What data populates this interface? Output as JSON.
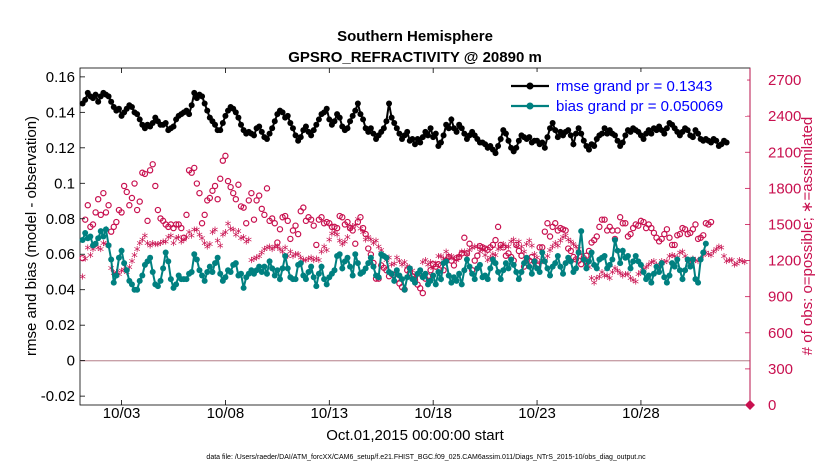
{
  "chart_data": {
    "type": "line",
    "title": "Southern Hemisphere",
    "subtitle": "GPSRO_REFRACTIVITY @ 20890 m",
    "xlabel": "Oct.01,2015 00:00:00 start",
    "ylabel": "rmse and bias (model - observation)",
    "y2label": "# of obs: o=possible; ∗=assimilated",
    "footnote": "data file: /Users/raeder/DAI/ATM_forcXX/CAM6_setup/f.e21.FHIST_BGC.f09_025.CAM6assim.011/Diags_NTrS_2015-10/obs_diag_output.nc",
    "x_unit": "days since Oct.01,2015 00:00",
    "xlim": [
      1.0,
      33.25
    ],
    "ylim": [
      -0.025,
      0.165
    ],
    "y2lim": [
      0,
      2800
    ],
    "xticks": [
      {
        "value": 3,
        "label": "10/03"
      },
      {
        "value": 8,
        "label": "10/08"
      },
      {
        "value": 13,
        "label": "10/13"
      },
      {
        "value": 18,
        "label": "10/18"
      },
      {
        "value": 23,
        "label": "10/23"
      },
      {
        "value": 28,
        "label": "10/28"
      }
    ],
    "yticks": [
      {
        "value": -0.02,
        "label": "-0.02"
      },
      {
        "value": 0,
        "label": "0"
      },
      {
        "value": 0.02,
        "label": "0.02"
      },
      {
        "value": 0.04,
        "label": "0.04"
      },
      {
        "value": 0.06,
        "label": "0.06"
      },
      {
        "value": 0.08,
        "label": "0.08"
      },
      {
        "value": 0.1,
        "label": "0.1"
      },
      {
        "value": 0.12,
        "label": "0.12"
      },
      {
        "value": 0.14,
        "label": "0.14"
      },
      {
        "value": 0.16,
        "label": "0.16"
      }
    ],
    "y2ticks": [
      {
        "value": 0,
        "label": "0"
      },
      {
        "value": 300,
        "label": "300"
      },
      {
        "value": 600,
        "label": "600"
      },
      {
        "value": 900,
        "label": "900"
      },
      {
        "value": 1200,
        "label": "1200"
      },
      {
        "value": 1500,
        "label": "1500"
      },
      {
        "value": 1800,
        "label": "1800"
      },
      {
        "value": 2100,
        "label": "2100"
      },
      {
        "value": 2400,
        "label": "2400"
      },
      {
        "value": 2700,
        "label": "2700"
      }
    ],
    "series": [
      {
        "name": "rmse grand pr = 0.1343",
        "axis": "left",
        "color": "#000000",
        "marker": "dot",
        "values": [
          0.145,
          0.147,
          0.151,
          0.149,
          0.148,
          0.15,
          0.146,
          0.149,
          0.151,
          0.15,
          0.149,
          0.146,
          0.143,
          0.141,
          0.142,
          0.138,
          0.14,
          0.142,
          0.144,
          0.143,
          0.14,
          0.139,
          0.136,
          0.133,
          0.131,
          0.133,
          0.132,
          0.134,
          0.137,
          0.135,
          0.133,
          0.133,
          0.134,
          0.13,
          0.131,
          0.132,
          0.136,
          0.138,
          0.139,
          0.14,
          0.141,
          0.139,
          0.144,
          0.151,
          0.148,
          0.15,
          0.149,
          0.145,
          0.141,
          0.137,
          0.135,
          0.133,
          0.13,
          0.13,
          0.134,
          0.138,
          0.141,
          0.143,
          0.142,
          0.14,
          0.137,
          0.133,
          0.13,
          0.128,
          0.129,
          0.128,
          0.127,
          0.131,
          0.132,
          0.129,
          0.126,
          0.125,
          0.128,
          0.131,
          0.135,
          0.139,
          0.141,
          0.14,
          0.137,
          0.138,
          0.134,
          0.131,
          0.127,
          0.124,
          0.126,
          0.13,
          0.132,
          0.129,
          0.127,
          0.13,
          0.133,
          0.136,
          0.139,
          0.14,
          0.142,
          0.136,
          0.133,
          0.135,
          0.139,
          0.137,
          0.132,
          0.13,
          0.131,
          0.135,
          0.138,
          0.141,
          0.145,
          0.139,
          0.136,
          0.131,
          0.129,
          0.131,
          0.128,
          0.125,
          0.127,
          0.129,
          0.131,
          0.135,
          0.145,
          0.137,
          0.134,
          0.131,
          0.128,
          0.125,
          0.127,
          0.129,
          0.124,
          0.125,
          0.122,
          0.125,
          0.123,
          0.126,
          0.129,
          0.127,
          0.131,
          0.126,
          0.128,
          0.121,
          0.123,
          0.127,
          0.133,
          0.131,
          0.136,
          0.131,
          0.129,
          0.133,
          0.131,
          0.128,
          0.125,
          0.127,
          0.129,
          0.127,
          0.125,
          0.123,
          0.123,
          0.122,
          0.12,
          0.121,
          0.119,
          0.117,
          0.121,
          0.125,
          0.13,
          0.128,
          0.124,
          0.12,
          0.118,
          0.12,
          0.124,
          0.127,
          0.126,
          0.125,
          0.126,
          0.123,
          0.124,
          0.124,
          0.122,
          0.123,
          0.12,
          0.126,
          0.131,
          0.134,
          0.13,
          0.126,
          0.129,
          0.127,
          0.129,
          0.13,
          0.127,
          0.122,
          0.128,
          0.131,
          0.128,
          0.124,
          0.121,
          0.119,
          0.122,
          0.121,
          0.125,
          0.127,
          0.128,
          0.131,
          0.128,
          0.13,
          0.128,
          0.127,
          0.124,
          0.121,
          0.123,
          0.127,
          0.13,
          0.129,
          0.131,
          0.13,
          0.129,
          0.127,
          0.125,
          0.128,
          0.13,
          0.128,
          0.131,
          0.13,
          0.132,
          0.13,
          0.128,
          0.131,
          0.134,
          0.133,
          0.131,
          0.129,
          0.127,
          0.129,
          0.131,
          0.13,
          0.127,
          0.126,
          0.13,
          0.128,
          0.125,
          0.124,
          0.125,
          0.124,
          0.123,
          0.125,
          0.124,
          0.121,
          0.122,
          0.124,
          0.123
        ]
      },
      {
        "name": "bias grand pr = 0.050069",
        "axis": "left",
        "color": "#008080",
        "marker": "dot",
        "values": [
          0.068,
          0.072,
          0.069,
          0.07,
          0.065,
          0.066,
          0.069,
          0.073,
          0.07,
          0.074,
          0.065,
          0.057,
          0.044,
          0.048,
          0.058,
          0.062,
          0.055,
          0.051,
          0.045,
          0.043,
          0.04,
          0.04,
          0.045,
          0.048,
          0.054,
          0.056,
          0.058,
          0.05,
          0.043,
          0.042,
          0.045,
          0.052,
          0.061,
          0.056,
          0.046,
          0.041,
          0.043,
          0.048,
          0.046,
          0.046,
          0.046,
          0.049,
          0.05,
          0.06,
          0.057,
          0.051,
          0.048,
          0.045,
          0.05,
          0.053,
          0.05,
          0.055,
          0.058,
          0.049,
          0.045,
          0.047,
          0.051,
          0.05,
          0.054,
          0.055,
          0.048,
          0.049,
          0.041,
          0.047,
          0.049,
          0.051,
          0.049,
          0.051,
          0.053,
          0.05,
          0.053,
          0.049,
          0.056,
          0.052,
          0.048,
          0.051,
          0.046,
          0.052,
          0.059,
          0.052,
          0.047,
          0.046,
          0.046,
          0.054,
          0.055,
          0.048,
          0.046,
          0.05,
          0.053,
          0.047,
          0.042,
          0.049,
          0.053,
          0.046,
          0.043,
          0.047,
          0.049,
          0.051,
          0.059,
          0.06,
          0.052,
          0.056,
          0.058,
          0.053,
          0.048,
          0.06,
          0.055,
          0.049,
          0.05,
          0.052,
          0.055,
          0.058,
          0.053,
          0.048,
          0.047,
          0.06,
          0.059,
          0.058,
          0.05,
          0.049,
          0.045,
          0.051,
          0.048,
          0.046,
          0.04,
          0.047,
          0.052,
          0.046,
          0.044,
          0.049,
          0.051,
          0.047,
          0.049,
          0.043,
          0.045,
          0.048,
          0.043,
          0.05,
          0.046,
          0.055,
          0.056,
          0.048,
          0.044,
          0.047,
          0.045,
          0.049,
          0.043,
          0.051,
          0.057,
          0.053,
          0.049,
          0.046,
          0.052,
          0.054,
          0.047,
          0.048,
          0.046,
          0.052,
          0.057,
          0.055,
          0.05,
          0.046,
          0.051,
          0.055,
          0.052,
          0.057,
          0.054,
          0.05,
          0.046,
          0.05,
          0.055,
          0.058,
          0.053,
          0.049,
          0.056,
          0.052,
          0.05,
          0.061,
          0.056,
          0.052,
          0.048,
          0.053,
          0.055,
          0.059,
          0.053,
          0.049,
          0.055,
          0.058,
          0.056,
          0.05,
          0.052,
          0.061,
          0.073,
          0.057,
          0.052,
          0.056,
          0.061,
          0.054,
          0.052,
          0.057,
          0.058,
          0.059,
          0.052,
          0.054,
          0.057,
          0.068,
          0.062,
          0.055,
          0.062,
          0.058,
          0.059,
          0.052,
          0.056,
          0.059,
          0.056,
          0.054,
          0.05,
          0.046,
          0.048,
          0.044,
          0.049,
          0.053,
          0.05,
          0.055,
          0.047,
          0.044,
          0.048,
          0.055,
          0.053,
          0.057,
          0.051,
          0.046,
          0.051,
          0.057,
          0.053,
          0.057,
          0.046,
          0.044,
          0.057,
          0.061,
          0.066
        ]
      },
      {
        "name": "possible",
        "axis": "right",
        "color": "#c8104f",
        "marker": "circle",
        "values": [
          1220,
          1540,
          1660,
          1480,
          1500,
          1600,
          1710,
          1580,
          1760,
          1600,
          1660,
          1440,
          1480,
          1520,
          1620,
          1600,
          1820,
          1770,
          1660,
          1720,
          1840,
          1620,
          1690,
          1930,
          1920,
          1530,
          1950,
          2000,
          1820,
          1620,
          1550,
          1530,
          1500,
          1480,
          1500,
          1470,
          1500,
          1500,
          1470,
          1390,
          1580,
          1950,
          1930,
          1970,
          1840,
          1760,
          1510,
          1580,
          1700,
          1720,
          1780,
          1820,
          1710,
          1880,
          2030,
          2070,
          1860,
          1810,
          1760,
          1710,
          1830,
          1650,
          1640,
          1510,
          1700,
          1760,
          1540,
          1700,
          1740,
          1630,
          1580,
          1800,
          1530,
          1550,
          1510,
          1350,
          1460,
          1560,
          1570,
          1530,
          1380,
          1450,
          1490,
          1420,
          1610,
          1640,
          1530,
          1560,
          1540,
          1490,
          1330,
          1540,
          1560,
          1510,
          1520,
          1510,
          1480,
          1480,
          1470,
          1570,
          1560,
          1500,
          1520,
          1470,
          1450,
          1340,
          1520,
          1560,
          1470,
          1420,
          1300,
          1250,
          1180,
          1050,
          1050,
          1160,
          1140,
          1120,
          1070,
          1090,
          1080,
          1050,
          1010,
          980,
          960,
          1120,
          1100,
          1070,
          1040,
          1000,
          970,
          930,
          1050,
          1070,
          1120,
          1170,
          1150,
          1170,
          1160,
          1120,
          1200,
          1230,
          1200,
          1160,
          1220,
          1230,
          1260,
          1390,
          1260,
          1340,
          1120,
          1200,
          1240,
          1320,
          1310,
          1300,
          1290,
          1310,
          1330,
          1370,
          1480,
          1330,
          1310,
          1240,
          1260,
          1230,
          1200,
          1330,
          1280,
          1240,
          1150,
          1200,
          1200,
          1230,
          1190,
          1160,
          1310,
          1310,
          1440,
          1510,
          1400,
          1480,
          1510,
          1450,
          1470,
          1460,
          1450,
          1300,
          1280,
          1230,
          1210,
          1200,
          1170,
          1220,
          1240,
          1280,
          1350,
          1370,
          1400,
          1480,
          1540,
          1540,
          1450,
          1480,
          1450,
          1380,
          1450,
          1560,
          1510,
          1510,
          1400,
          1420,
          1470,
          1500,
          1490,
          1530,
          1520,
          1470,
          1500,
          1470,
          1430,
          1390,
          1360,
          1380,
          1420,
          1460,
          1390,
          1330,
          1330,
          1410,
          1420,
          1470,
          1460,
          1420,
          1430,
          1460,
          1500,
          1380,
          1390,
          1410,
          1510,
          1500,
          1520
        ]
      },
      {
        "name": "assimilated",
        "axis": "right",
        "color": "#c8104f",
        "marker": "star",
        "values": [
          1050,
          1200,
          1290,
          1230,
          1280,
          1320,
          1290,
          1280,
          1330,
          1320,
          1310,
          1120,
          1080,
          1090,
          1070,
          1100,
          1110,
          1090,
          1130,
          1180,
          1230,
          1280,
          1330,
          1360,
          1390,
          1330,
          1310,
          1330,
          1320,
          1320,
          1330,
          1340,
          1340,
          1380,
          1390,
          1330,
          1370,
          1380,
          1340,
          1360,
          1380,
          1420,
          1390,
          1440,
          1440,
          1400,
          1370,
          1330,
          1300,
          1320,
          1420,
          1440,
          1350,
          1310,
          1400,
          1420,
          1490,
          1450,
          1440,
          1400,
          1430,
          1370,
          1380,
          1340,
          1360,
          1190,
          1200,
          1210,
          1220,
          1250,
          1280,
          1290,
          1300,
          1280,
          1300,
          1300,
          1280,
          1260,
          1290,
          1220,
          1260,
          1220,
          1240,
          1240,
          1210,
          1190,
          1190,
          1200,
          1210,
          1190,
          1200,
          1190,
          1260,
          1300,
          1270,
          1360,
          1410,
          1420,
          1400,
          1350,
          1320,
          1340,
          1380,
          1450,
          1470,
          1480,
          1530,
          1450,
          1420,
          1360,
          1380,
          1360,
          1330,
          1350,
          1300,
          1270,
          1220,
          1190,
          1210,
          1150,
          1160,
          1210,
          1180,
          1150,
          1170,
          1140,
          1120,
          1100,
          1060,
          1060,
          1080,
          1170,
          1190,
          1150,
          1170,
          1120,
          1160,
          1220,
          1220,
          1200,
          1260,
          1220,
          1220,
          1200,
          1190,
          1220,
          1260,
          1260,
          1240,
          1270,
          1290,
          1300,
          1300,
          1260,
          1280,
          1230,
          1190,
          1210,
          1240,
          1230,
          1280,
          1300,
          1320,
          1300,
          1300,
          1340,
          1360,
          1310,
          1340,
          1300,
          1260,
          1320,
          1350,
          1310,
          1240,
          1210,
          1170,
          1180,
          1180,
          1220,
          1270,
          1300,
          1330,
          1310,
          1350,
          1380,
          1390,
          1360,
          1340,
          1320,
          1300,
          1280,
          1240,
          1190,
          1160,
          1130,
          1040,
          1000,
          1040,
          1050,
          1090,
          1060,
          1060,
          1040,
          1090,
          1120,
          1100,
          1080,
          1060,
          1070,
          1070,
          1040,
          1020,
          1010,
          1070,
          1090,
          1110,
          1130,
          1150,
          1170,
          1180,
          1150,
          1140,
          1180,
          1170,
          1180,
          1220,
          1230,
          1220,
          1210,
          1250,
          1260,
          1220,
          1190,
          1160,
          1200,
          1190,
          1180,
          1200,
          1230,
          1250,
          1240,
          1230,
          1260,
          1280,
          1300,
          1290,
          1220,
          1180,
          1190,
          1190,
          1150,
          1160,
          1190,
          1180,
          1170
        ]
      }
    ],
    "zero_line": 0,
    "end_marker_right_value": 0,
    "legend_position": "top-right",
    "grid": false
  },
  "colors": {
    "rmse": "#000000",
    "bias": "#008080",
    "obs": "#c8104f",
    "zero_line": "#c8a0a8",
    "legend_text": "#0000ff"
  }
}
